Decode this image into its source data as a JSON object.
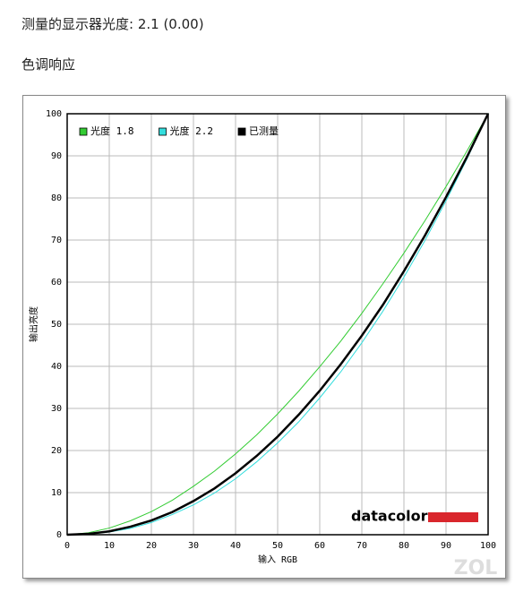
{
  "header": {
    "title": "测量的显示器光度: 2.1 (0.00)",
    "section": "色调响应"
  },
  "chart_data": {
    "type": "line",
    "xlabel": "输入 RGB",
    "ylabel": "输出亮度",
    "x": [
      0,
      5,
      10,
      15,
      20,
      25,
      30,
      35,
      40,
      45,
      50,
      55,
      60,
      65,
      70,
      75,
      80,
      85,
      90,
      95,
      100
    ],
    "series": [
      {
        "name": "光度 1.8",
        "color": "#33cc33",
        "width": 1,
        "values": [
          0,
          0.46,
          1.58,
          3.3,
          5.5,
          8.2,
          11.5,
          15.1,
          19.2,
          23.7,
          28.7,
          34.1,
          39.9,
          46.0,
          52.6,
          59.6,
          66.9,
          74.6,
          82.7,
          91.2,
          100
        ]
      },
      {
        "name": "光度 2.2",
        "color": "#33dddd",
        "width": 1,
        "values": [
          0,
          0.14,
          0.63,
          1.5,
          2.9,
          4.8,
          7.1,
          9.9,
          13.3,
          17.3,
          21.8,
          26.8,
          32.5,
          38.7,
          45.6,
          53.1,
          61.2,
          69.9,
          79.3,
          89.3,
          100
        ]
      },
      {
        "name": "已测量",
        "color": "#000000",
        "width": 2.5,
        "values": [
          0,
          0.2,
          0.8,
          1.9,
          3.4,
          5.4,
          8.0,
          11.0,
          14.6,
          18.7,
          23.3,
          28.5,
          34.2,
          40.5,
          47.3,
          54.6,
          62.6,
          71.1,
          80.2,
          89.8,
          100
        ]
      }
    ],
    "xlim": [
      0,
      100
    ],
    "ylim": [
      0,
      100
    ],
    "xticks": [
      0,
      10,
      20,
      30,
      40,
      50,
      60,
      70,
      80,
      90,
      100
    ],
    "yticks": [
      0,
      10,
      20,
      30,
      40,
      50,
      60,
      70,
      80,
      90,
      100
    ],
    "grid": true,
    "legend": "top-left",
    "logo": "datacolor",
    "watermark": "ZOL"
  }
}
